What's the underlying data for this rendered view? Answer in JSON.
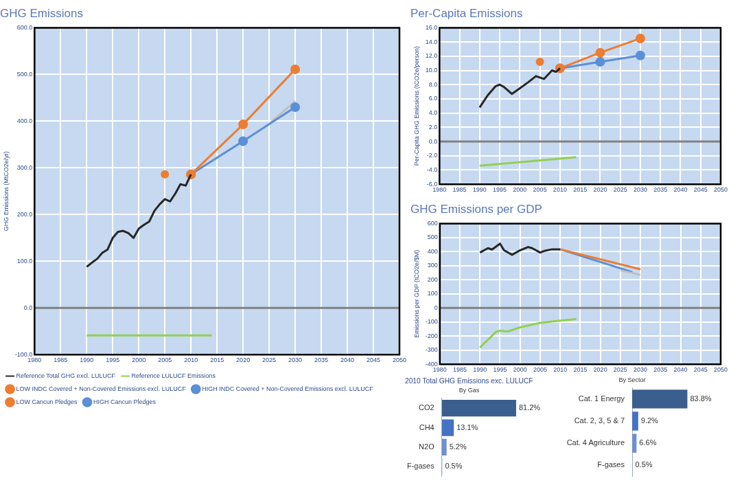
{
  "chart_data": [
    {
      "type": "line",
      "title": "GHG Emissions",
      "ylabel": "GHG Emissions (MtCO2e/yr)",
      "xlim": [
        1980,
        2050
      ],
      "xticks": [
        1980,
        1985,
        1990,
        1995,
        2000,
        2005,
        2010,
        2015,
        2020,
        2025,
        2030,
        2035,
        2040,
        2045,
        2050
      ],
      "ylim": [
        -100,
        600
      ],
      "yticks": [
        {
          "value": -100,
          "label": "-100.0"
        },
        {
          "value": 0,
          "label": "0.0"
        },
        {
          "value": 100,
          "label": "100.0"
        },
        {
          "value": 200,
          "label": "200.0"
        },
        {
          "value": 300,
          "label": "300.0"
        },
        {
          "value": 400,
          "label": "400.0"
        },
        {
          "value": 500,
          "label": "500.0"
        },
        {
          "value": 600,
          "label": "600.0"
        }
      ],
      "grid": true,
      "legend": "bottom",
      "ref_lines": [
        {
          "axis": "y",
          "value": 0,
          "color": "#808080"
        }
      ],
      "series": [
        {
          "type": "line",
          "name": "Reference Total GHG excl. LULUCF",
          "color": "#262626",
          "marker": "none",
          "x": [
            1990,
            1991,
            1992,
            1993,
            1994,
            1995,
            1996,
            1997,
            1998,
            1999,
            2000,
            2001,
            2002,
            2003,
            2004,
            2005,
            2006,
            2007,
            2008,
            2009,
            2010
          ],
          "values": [
            88,
            97,
            105,
            118,
            125,
            150,
            163,
            165,
            160,
            150,
            170,
            178,
            185,
            208,
            222,
            233,
            228,
            245,
            265,
            262,
            286
          ]
        },
        {
          "type": "line",
          "name": "Reference LULUCF Emissions",
          "color": "#92d050",
          "marker": "none",
          "x": [
            1990,
            2014
          ],
          "values": [
            -59,
            -59
          ]
        },
        {
          "type": "line",
          "name": "LOW INDC Covered + Non-Covered Emissions excl. LULUCF",
          "color": "#ed7d31",
          "marker": "circle",
          "x": [
            2010,
            2020,
            2030
          ],
          "values": [
            286,
            393,
            511
          ]
        },
        {
          "type": "line",
          "name": "HIGH INDC Covered + Non-Covered Emissions excl. LULUCF",
          "color": "#5b8fd6",
          "marker": "circle",
          "x": [
            2010,
            2020,
            2030
          ],
          "values": [
            286,
            357,
            430
          ]
        },
        {
          "type": "line",
          "color": "#bfbfbf",
          "marker": "none",
          "x": [
            2025,
            2030
          ],
          "values": [
            394,
            443
          ]
        },
        {
          "type": "scatter",
          "name": "LOW Cancun Pledges",
          "color": "#ed7d31",
          "marker": "circle",
          "x": [
            2005
          ],
          "values": [
            286
          ]
        },
        {
          "type": "scatter",
          "name": "HIGH Cancun Pledges",
          "color": "#5b8fd6",
          "marker": "circle",
          "x": [
            2020
          ],
          "values": [
            357
          ]
        }
      ]
    },
    {
      "type": "line",
      "title": "Per-Capita Emissions",
      "ylabel": "Per-Capita GHG Emissions (tCO2e/person)",
      "xlim": [
        1980,
        2050
      ],
      "xticks": [
        1980,
        1985,
        1990,
        1995,
        2000,
        2005,
        2010,
        2015,
        2020,
        2025,
        2030,
        2035,
        2040,
        2045,
        2050
      ],
      "ylim": [
        -6,
        16
      ],
      "yticks": [
        {
          "value": -6,
          "label": "-6.0"
        },
        {
          "value": -4,
          "label": "-4.0"
        },
        {
          "value": -2,
          "label": "-2.0"
        },
        {
          "value": 0,
          "label": "0.0"
        },
        {
          "value": 2,
          "label": "2.0"
        },
        {
          "value": 4,
          "label": "4.0"
        },
        {
          "value": 6,
          "label": "6.0"
        },
        {
          "value": 8,
          "label": "8.0"
        },
        {
          "value": 10,
          "label": "10.0"
        },
        {
          "value": 12,
          "label": "12.0"
        },
        {
          "value": 14,
          "label": "14.0"
        },
        {
          "value": 16,
          "label": "16.0"
        }
      ],
      "grid": true,
      "ref_lines": [
        {
          "axis": "y",
          "value": 0,
          "color": "#808080"
        }
      ],
      "series": [
        {
          "type": "line",
          "color": "#262626",
          "marker": "none",
          "x": [
            1990,
            1992,
            1994,
            1995,
            1996,
            1998,
            2000,
            2002,
            2004,
            2005,
            2006,
            2008,
            2009,
            2010
          ],
          "values": [
            4.8,
            6.5,
            7.8,
            8.0,
            7.7,
            6.7,
            7.5,
            8.3,
            9.2,
            9.0,
            8.8,
            10.0,
            9.8,
            10.3
          ]
        },
        {
          "type": "line",
          "color": "#92d050",
          "marker": "none",
          "x": [
            1990,
            2014
          ],
          "values": [
            -3.4,
            -2.2
          ]
        },
        {
          "type": "line",
          "color": "#ed7d31",
          "marker": "circle",
          "x": [
            2010,
            2020,
            2030
          ],
          "values": [
            10.3,
            12.5,
            14.5
          ]
        },
        {
          "type": "line",
          "color": "#5b8fd6",
          "marker": "circle",
          "x": [
            2010,
            2020,
            2030
          ],
          "values": [
            10.3,
            11.2,
            12.1
          ]
        },
        {
          "type": "scatter",
          "color": "#ed7d31",
          "marker": "circle",
          "x": [
            2005
          ],
          "values": [
            11.2
          ]
        }
      ]
    },
    {
      "type": "line",
      "title": "GHG Emissions per GDP",
      "ylabel": "Emissions per GDP (tCO2e/$M)",
      "xlim": [
        1980,
        2050
      ],
      "xticks": [
        1980,
        1985,
        1990,
        1995,
        2000,
        2005,
        2010,
        2015,
        2020,
        2025,
        2030,
        2035,
        2040,
        2045,
        2050
      ],
      "ylim": [
        -400,
        600
      ],
      "yticks": [
        -400,
        -300,
        -200,
        -100,
        0,
        100,
        200,
        300,
        400,
        500,
        600
      ],
      "grid": true,
      "ref_lines": [
        {
          "axis": "y",
          "value": 0,
          "color": "#808080"
        }
      ],
      "series": [
        {
          "type": "line",
          "color": "#262626",
          "marker": "none",
          "x": [
            1990,
            1992,
            1993,
            1995,
            1996,
            1998,
            2000,
            2002,
            2003,
            2005,
            2006,
            2008,
            2010
          ],
          "values": [
            394,
            425,
            415,
            457,
            410,
            378,
            410,
            433,
            425,
            394,
            405,
            417,
            417
          ]
        },
        {
          "type": "line",
          "color": "#92d050",
          "marker": "none",
          "x": [
            1990,
            1994,
            1995,
            1997,
            2000,
            2005,
            2010,
            2014
          ],
          "values": [
            -281,
            -170,
            -162,
            -167,
            -138,
            -106,
            -90,
            -79
          ]
        },
        {
          "type": "line",
          "color": "#ed7d31",
          "marker": "none",
          "x": [
            2010,
            2030
          ],
          "values": [
            417,
            275
          ]
        },
        {
          "type": "line",
          "color": "#bfbfbf",
          "marker": "none",
          "x": [
            2025,
            2030
          ],
          "values": [
            267,
            235
          ]
        },
        {
          "type": "line",
          "color": "#5b8fd6",
          "marker": "none",
          "x": [
            2010,
            2028
          ],
          "values": [
            417,
            255
          ]
        }
      ]
    },
    {
      "type": "bar",
      "orientation": "horizontal",
      "title": "2010 Total GHG Emissions exc. LULUCF",
      "subtitle": "By Gas",
      "categories": [
        "CO2",
        "CH4",
        "N2O",
        "F-gases"
      ],
      "values": [
        81.2,
        13.1,
        5.2,
        0.5
      ],
      "value_labels": [
        "81.2%",
        "13.1%",
        "5.2%",
        "0.5%"
      ],
      "colors": [
        "#3a5f8f",
        "#4472c4",
        "#6f8fd0",
        "#8ea9db"
      ]
    },
    {
      "type": "bar",
      "orientation": "horizontal",
      "subtitle": "By Sector",
      "categories": [
        "Cat. 1 Energy",
        "Cat. 2, 3, 5 & 7",
        "Cat. 4 Agriculture",
        "F-gases"
      ],
      "values": [
        83.8,
        9.2,
        6.6,
        0.5
      ],
      "value_labels": [
        "83.8%",
        "9.2%",
        "6.6%",
        "0.5%"
      ],
      "colors": [
        "#3a5f8f",
        "#4472c4",
        "#6f8fd0",
        "#8ea9db"
      ]
    }
  ]
}
